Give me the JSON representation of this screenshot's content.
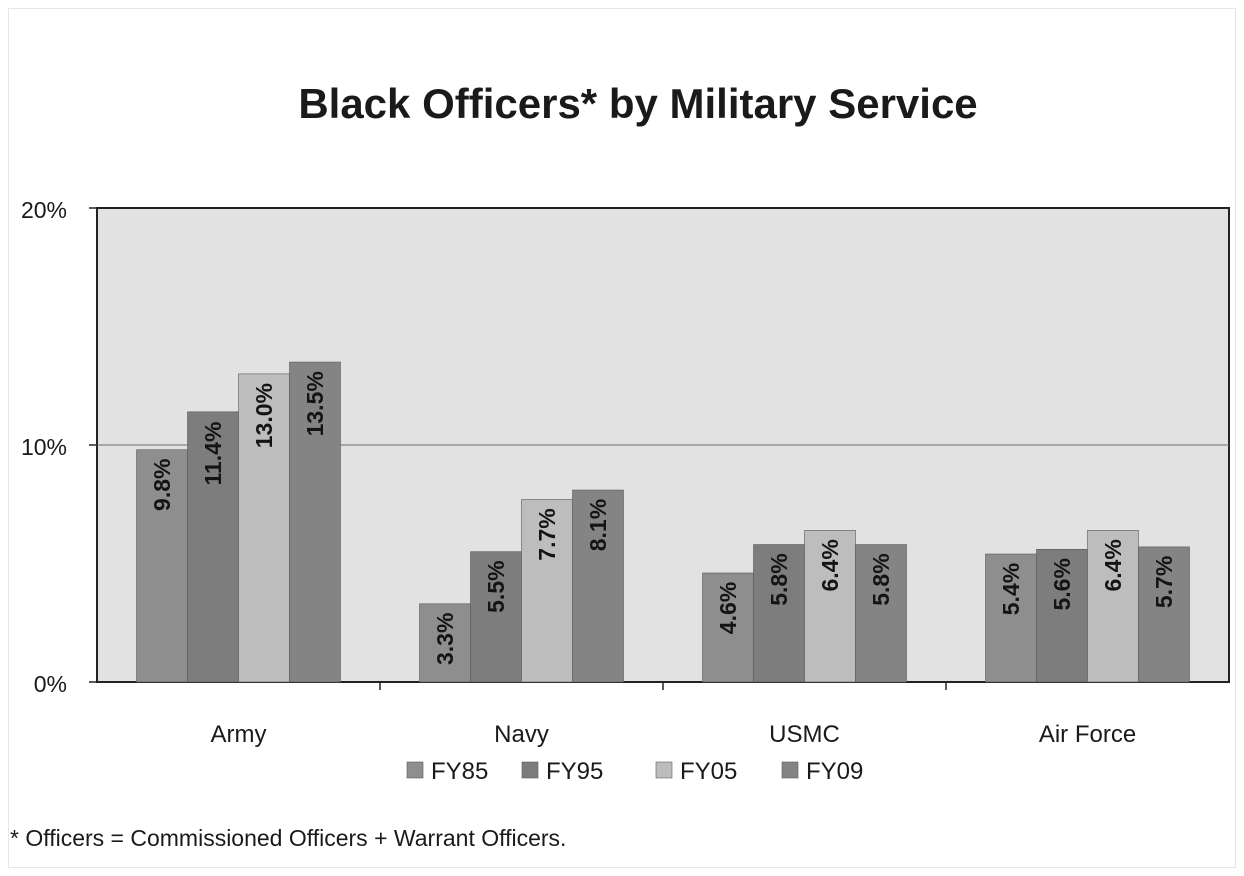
{
  "chart_data": {
    "type": "bar",
    "title": "Black Officers* by Military Service",
    "categories": [
      "Army",
      "Navy",
      "USMC",
      "Air Force"
    ],
    "series": [
      {
        "name": "FY85",
        "values": [
          9.8,
          3.3,
          4.6,
          5.4
        ],
        "labels": [
          "9.8%",
          "3.3%",
          "4.6%",
          "5.4%"
        ],
        "color": "#8e8e8e"
      },
      {
        "name": "FY95",
        "values": [
          11.4,
          5.5,
          5.8,
          5.6
        ],
        "labels": [
          "11.4%",
          "5.5%",
          "5.8%",
          "5.6%"
        ],
        "color": "#7d7d7d"
      },
      {
        "name": "FY05",
        "values": [
          13.0,
          7.7,
          6.4,
          6.4
        ],
        "labels": [
          "13.0%",
          "7.7%",
          "6.4%",
          "6.4%"
        ],
        "color": "#bdbdbd"
      },
      {
        "name": "FY09",
        "values": [
          13.5,
          8.1,
          5.8,
          5.7
        ],
        "labels": [
          "13.5%",
          "8.1%",
          "5.8%",
          "5.7%"
        ],
        "color": "#848484"
      }
    ],
    "xlabel": "",
    "ylabel": "",
    "ylim": [
      0,
      20
    ],
    "yticks": [
      0,
      10,
      20
    ],
    "ytick_labels": [
      "0%",
      "10%",
      "20%"
    ],
    "grid": true,
    "legend": "bottom",
    "plot_background": "#e2e2e2",
    "footnote": "* Officers = Commissioned Officers + Warrant Officers."
  }
}
